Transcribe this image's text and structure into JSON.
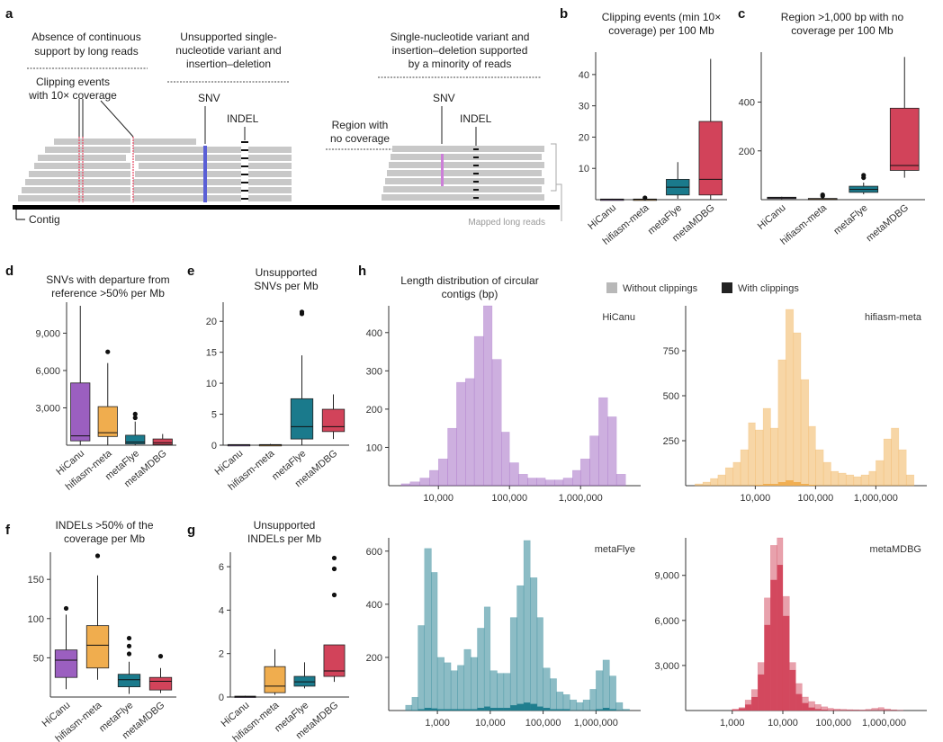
{
  "panel_labels": {
    "a": "a",
    "b": "b",
    "c": "c",
    "d": "d",
    "e": "e",
    "f": "f",
    "g": "g",
    "h": "h"
  },
  "schematic": {
    "block1_title": [
      "Absence of continuous",
      "support by long reads"
    ],
    "block1_sub": [
      "Clipping events",
      "with 10× coverage"
    ],
    "block2_title": [
      "Unsupported single-",
      "nucleotide variant and",
      "insertion–deletion"
    ],
    "block3_title": [
      "Single-nucleotide variant and",
      "insertion–deletion supported",
      "by a minority of reads"
    ],
    "snv": "SNV",
    "indel": "INDEL",
    "region_no_cov": [
      "Region with",
      "no coverage"
    ],
    "contig": "Contig",
    "mapped_reads": "Mapped long reads",
    "colors": {
      "read": "#c8c8c8",
      "clip": "#e8516a",
      "snv_unsupported": "#5a5fd6",
      "snv_minority": "#cc7fd8",
      "indel": "#111111"
    }
  },
  "colors": {
    "HiCanu": "#9b5fc0",
    "hifiasm-meta": "#f0ad4e",
    "metaFlye": "#1a7a8c",
    "metaMDBG": "#d2435a"
  },
  "chart_data": [
    {
      "panel": "b",
      "type": "box",
      "title": [
        "Clipping events (min 10×",
        "coverage) per 100 Mb"
      ],
      "ylim": [
        0,
        46
      ],
      "yticks": [
        10,
        20,
        30,
        40
      ],
      "ytick_labels": [
        "10",
        "20",
        "30",
        "40"
      ],
      "categories": [
        "HiCanu",
        "hifiasm-meta",
        "metaFlye",
        "metaMDBG"
      ],
      "boxes": [
        {
          "name": "HiCanu",
          "min": 0,
          "q1": 0,
          "median": 0.1,
          "q3": 0.2,
          "max": 0.3,
          "outliers": []
        },
        {
          "name": "hifiasm-meta",
          "min": 0,
          "q1": 0,
          "median": 0.1,
          "q3": 0.2,
          "max": 0.3,
          "outliers": [
            0.6
          ]
        },
        {
          "name": "metaFlye",
          "min": 0.3,
          "q1": 1.5,
          "median": 4,
          "q3": 6.5,
          "max": 12,
          "outliers": []
        },
        {
          "name": "metaMDBG",
          "min": 0,
          "q1": 1.5,
          "median": 6.5,
          "q3": 25,
          "max": 45,
          "outliers": []
        }
      ]
    },
    {
      "panel": "c",
      "type": "box",
      "title": [
        "Region >1,000 bp with no",
        "coverage per 100 Mb"
      ],
      "ylim": [
        0,
        590
      ],
      "yticks": [
        200,
        400
      ],
      "ytick_labels": [
        "200",
        "400"
      ],
      "categories": [
        "HiCanu",
        "hifiasm-meta",
        "metaFlye",
        "metaMDBG"
      ],
      "boxes": [
        {
          "name": "HiCanu",
          "min": 2,
          "q1": 5,
          "median": 8,
          "q3": 10,
          "max": 12,
          "outliers": []
        },
        {
          "name": "hifiasm-meta",
          "min": 0,
          "q1": 1,
          "median": 3,
          "q3": 5,
          "max": 8,
          "outliers": [
            15,
            20
          ]
        },
        {
          "name": "metaFlye",
          "min": 22,
          "q1": 30,
          "median": 42,
          "q3": 55,
          "max": 70,
          "outliers": [
            90,
            100
          ]
        },
        {
          "name": "metaMDBG",
          "min": 90,
          "q1": 120,
          "median": 140,
          "q3": 375,
          "max": 585,
          "outliers": []
        }
      ]
    },
    {
      "panel": "d",
      "type": "box",
      "title": [
        "SNVs with departure from",
        "reference >50% per Mb"
      ],
      "ylim": [
        0,
        11200
      ],
      "yticks": [
        3000,
        6000,
        9000
      ],
      "ytick_labels": [
        "3,000",
        "6,000",
        "9,000"
      ],
      "categories": [
        "HiCanu",
        "hifiasm-meta",
        "metaFlye",
        "metaMDBG"
      ],
      "boxes": [
        {
          "name": "HiCanu",
          "min": 0,
          "q1": 350,
          "median": 750,
          "q3": 5000,
          "max": 11200,
          "outliers": []
        },
        {
          "name": "hifiasm-meta",
          "min": 0,
          "q1": 700,
          "median": 1000,
          "q3": 3100,
          "max": 6600,
          "outliers": [
            7500
          ]
        },
        {
          "name": "metaFlye",
          "min": 0,
          "q1": 100,
          "median": 250,
          "q3": 800,
          "max": 1900,
          "outliers": [
            2200,
            2500
          ]
        },
        {
          "name": "metaMDBG",
          "min": 0,
          "q1": 50,
          "median": 200,
          "q3": 500,
          "max": 900,
          "outliers": []
        }
      ]
    },
    {
      "panel": "e",
      "type": "box",
      "title": [
        "Unsupported",
        "SNVs per Mb"
      ],
      "ylim": [
        0,
        22.5
      ],
      "yticks": [
        0,
        5,
        10,
        15,
        20
      ],
      "ytick_labels": [
        "0",
        "5",
        "10",
        "15",
        "20"
      ],
      "categories": [
        "HiCanu",
        "hifiasm-meta",
        "metaFlye",
        "metaMDBG"
      ],
      "boxes": [
        {
          "name": "HiCanu",
          "min": 0,
          "q1": 0,
          "median": 0.05,
          "q3": 0.1,
          "max": 0.15,
          "outliers": []
        },
        {
          "name": "hifiasm-meta",
          "min": 0,
          "q1": 0,
          "median": 0.05,
          "q3": 0.1,
          "max": 0.2,
          "outliers": []
        },
        {
          "name": "metaFlye",
          "min": 0,
          "q1": 1,
          "median": 3,
          "q3": 7.5,
          "max": 14.5,
          "outliers": [
            21.2,
            21.5
          ]
        },
        {
          "name": "metaMDBG",
          "min": 1,
          "q1": 2.2,
          "median": 3,
          "q3": 5.8,
          "max": 8.2,
          "outliers": []
        }
      ]
    },
    {
      "panel": "f",
      "type": "box",
      "title": [
        "INDELs >50% of the",
        "coverage per Mb"
      ],
      "ylim": [
        0,
        180
      ],
      "yticks": [
        50,
        100,
        150
      ],
      "ytick_labels": [
        "50",
        "100",
        "150"
      ],
      "categories": [
        "HiCanu",
        "hifiasm-meta",
        "metaFlye",
        "metaMDBG"
      ],
      "boxes": [
        {
          "name": "HiCanu",
          "min": 10,
          "q1": 25,
          "median": 47,
          "q3": 60,
          "max": 105,
          "outliers": [
            113
          ]
        },
        {
          "name": "hifiasm-meta",
          "min": 22,
          "q1": 37,
          "median": 66,
          "q3": 91,
          "max": 155,
          "outliers": [
            180
          ]
        },
        {
          "name": "metaFlye",
          "min": 4,
          "q1": 13,
          "median": 22,
          "q3": 29,
          "max": 45,
          "outliers": [
            55,
            65,
            75
          ]
        },
        {
          "name": "metaMDBG",
          "min": 5,
          "q1": 9,
          "median": 20,
          "q3": 25,
          "max": 37,
          "outliers": [
            52
          ]
        }
      ]
    },
    {
      "panel": "g",
      "type": "box",
      "title": [
        "Unsupported",
        "INDELs per Mb"
      ],
      "ylim": [
        0,
        6.5
      ],
      "yticks": [
        0,
        2,
        4,
        6
      ],
      "ytick_labels": [
        "0",
        "2",
        "4",
        "6"
      ],
      "categories": [
        "HiCanu",
        "hifiasm-meta",
        "metaFlye",
        "metaMDBG"
      ],
      "boxes": [
        {
          "name": "HiCanu",
          "min": 0,
          "q1": 0,
          "median": 0.02,
          "q3": 0.04,
          "max": 0.06,
          "outliers": []
        },
        {
          "name": "hifiasm-meta",
          "min": 0.1,
          "q1": 0.2,
          "median": 0.5,
          "q3": 1.4,
          "max": 2.2,
          "outliers": []
        },
        {
          "name": "metaFlye",
          "min": 0.4,
          "q1": 0.5,
          "median": 0.7,
          "q3": 0.95,
          "max": 1.6,
          "outliers": []
        },
        {
          "name": "metaMDBG",
          "min": 0.7,
          "q1": 0.95,
          "median": 1.2,
          "q3": 2.4,
          "max": 2.4,
          "outliers": [
            4.7,
            5.9,
            6.4
          ]
        }
      ]
    },
    {
      "panel": "h",
      "type": "histogram",
      "xscale": "log",
      "title": [
        "Length distribution of circular",
        "contigs (bp)"
      ],
      "legend": {
        "without": "Without clippings",
        "with": "With clippings",
        "without_color": "#b8b8b8",
        "with_color": "#222222"
      },
      "subplots": [
        {
          "name": "HiCanu",
          "color": "#9b5fc0",
          "xlim": [
            2000,
            7000000
          ],
          "ylim": [
            0,
            470
          ],
          "yticks": [
            100,
            200,
            300,
            400
          ],
          "ytick_labels": [
            "100",
            "200",
            "300",
            "400"
          ],
          "xticks": [
            10000,
            100000,
            1000000
          ],
          "xtick_labels": [
            "10,000",
            "100,000",
            "1,000,000"
          ],
          "bin_edges": [
            3000,
            4000,
            5500,
            7500,
            10000,
            13500,
            18000,
            24000,
            32000,
            43000,
            57000,
            77000,
            100000,
            135000,
            180000,
            240000,
            320000,
            430000,
            570000,
            770000,
            1000000,
            1350000,
            1800000,
            2400000,
            3200000,
            4300000
          ],
          "without": [
            5,
            10,
            20,
            40,
            70,
            150,
            270,
            280,
            390,
            470,
            330,
            140,
            60,
            30,
            20,
            20,
            15,
            15,
            20,
            40,
            70,
            130,
            230,
            180,
            30
          ],
          "with": [
            0,
            0,
            0,
            0,
            0,
            0,
            0,
            0,
            0,
            0,
            0,
            0,
            0,
            0,
            0,
            0,
            0,
            0,
            0,
            0,
            0,
            0,
            0,
            0,
            0
          ]
        },
        {
          "name": "hifiasm-meta",
          "color": "#f0ad4e",
          "xlim": [
            700,
            7000000
          ],
          "ylim": [
            0,
            1000
          ],
          "yticks": [
            250,
            500,
            750
          ],
          "ytick_labels": [
            "250",
            "500",
            "750"
          ],
          "xticks": [
            10000,
            100000,
            1000000
          ],
          "xtick_labels": [
            "10,000",
            "100,000",
            "1,000,000"
          ],
          "bin_edges": [
            1000,
            1350,
            1800,
            2400,
            3200,
            4300,
            5700,
            7700,
            10000,
            13500,
            18000,
            24000,
            32000,
            43000,
            57000,
            77000,
            100000,
            135000,
            180000,
            240000,
            320000,
            430000,
            570000,
            770000,
            1000000,
            1350000,
            1800000,
            2400000,
            3200000,
            4300000
          ],
          "without": [
            10,
            20,
            40,
            60,
            100,
            130,
            200,
            350,
            310,
            430,
            320,
            700,
            980,
            850,
            590,
            330,
            200,
            130,
            80,
            70,
            60,
            50,
            60,
            80,
            140,
            260,
            320,
            200,
            60
          ],
          "with": [
            0,
            0,
            0,
            0,
            0,
            0,
            0,
            0,
            5,
            10,
            10,
            20,
            30,
            20,
            10,
            5,
            0,
            0,
            0,
            0,
            0,
            0,
            0,
            0,
            0,
            0,
            0,
            0,
            0
          ]
        },
        {
          "name": "metaFlye",
          "color": "#1a7a8c",
          "xlim": [
            120,
            7000000
          ],
          "ylim": [
            0,
            650
          ],
          "yticks": [
            200,
            400,
            600
          ],
          "ytick_labels": [
            "200",
            "400",
            "600"
          ],
          "xticks": [
            1000,
            10000,
            100000,
            1000000
          ],
          "xtick_labels": [
            "1,000",
            "10,000",
            "100,000",
            "1,000,000"
          ],
          "bin_edges": [
            250,
            330,
            430,
            570,
            770,
            1000,
            1350,
            1800,
            2400,
            3200,
            4300,
            5700,
            7700,
            10000,
            13500,
            18000,
            24000,
            32000,
            43000,
            57000,
            77000,
            100000,
            135000,
            180000,
            240000,
            320000,
            430000,
            570000,
            770000,
            1000000,
            1350000,
            1800000,
            2400000,
            3200000,
            4300000
          ],
          "without": [
            20,
            50,
            320,
            610,
            520,
            200,
            180,
            150,
            170,
            230,
            200,
            310,
            390,
            150,
            140,
            140,
            350,
            470,
            640,
            500,
            350,
            160,
            120,
            70,
            60,
            40,
            30,
            40,
            80,
            150,
            190,
            130,
            30,
            5
          ],
          "with": [
            0,
            2,
            5,
            10,
            8,
            5,
            5,
            5,
            5,
            5,
            5,
            10,
            15,
            10,
            10,
            10,
            20,
            25,
            30,
            25,
            15,
            10,
            5,
            5,
            5,
            0,
            0,
            0,
            0,
            5,
            10,
            5,
            0,
            0
          ]
        },
        {
          "name": "metaMDBG",
          "color": "#d2435a",
          "xlim": [
            120,
            7000000
          ],
          "ylim": [
            0,
            11500
          ],
          "yticks": [
            3000,
            6000,
            9000
          ],
          "ytick_labels": [
            "3,000",
            "6,000",
            "9,000"
          ],
          "xticks": [
            1000,
            10000,
            100000,
            1000000
          ],
          "xtick_labels": [
            "1,000",
            "10,000",
            "100,000",
            "1,000,000"
          ],
          "bin_edges": [
            1000,
            1350,
            1800,
            2400,
            3200,
            4300,
            5700,
            7700,
            10000,
            13500,
            18000,
            24000,
            32000,
            43000,
            57000,
            77000,
            100000,
            135000,
            180000,
            240000,
            320000,
            430000,
            570000,
            770000,
            1000000,
            1350000,
            1800000,
            2400000
          ],
          "without": [
            100,
            200,
            700,
            1400,
            3200,
            7500,
            11000,
            11500,
            7600,
            3200,
            1800,
            900,
            600,
            400,
            250,
            150,
            100,
            80,
            60,
            50,
            40,
            80,
            150,
            200,
            100,
            50,
            20
          ],
          "with": [
            50,
            150,
            400,
            900,
            2400,
            5700,
            8700,
            9700,
            6300,
            2700,
            1100,
            500,
            200,
            100,
            60,
            30,
            20,
            10,
            10,
            5,
            5,
            0,
            0,
            0,
            0,
            0,
            0
          ]
        }
      ]
    }
  ]
}
